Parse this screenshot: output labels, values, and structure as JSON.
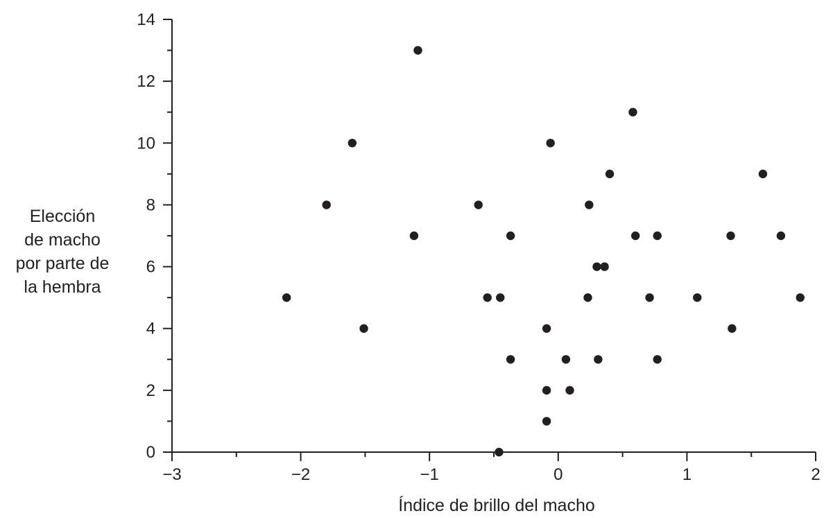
{
  "chart_data": {
    "type": "scatter",
    "xlabel": "Índice de brillo del macho",
    "ylabel_lines": [
      "Elección",
      "de macho",
      "por parte de",
      "la hembra"
    ],
    "xlim": [
      -3,
      2
    ],
    "ylim": [
      0,
      14
    ],
    "x_ticks": [
      {
        "value": -3,
        "label": "−3"
      },
      {
        "value": -2,
        "label": "−2"
      },
      {
        "value": -1,
        "label": "−1"
      },
      {
        "value": 0,
        "label": "0"
      },
      {
        "value": 1,
        "label": "1"
      },
      {
        "value": 2,
        "label": "2"
      }
    ],
    "x_minor_ticks": [
      -2.5,
      -1.5,
      -0.5,
      0.5,
      1.5
    ],
    "y_ticks": [
      {
        "value": 0,
        "label": "0"
      },
      {
        "value": 2,
        "label": "2"
      },
      {
        "value": 4,
        "label": "4"
      },
      {
        "value": 6,
        "label": "6"
      },
      {
        "value": 8,
        "label": "8"
      },
      {
        "value": 10,
        "label": "10"
      },
      {
        "value": 12,
        "label": "12"
      },
      {
        "value": 14,
        "label": "14"
      }
    ],
    "y_minor_ticks": [
      1,
      3,
      5,
      7,
      9,
      11,
      13
    ],
    "grid": false,
    "points": [
      {
        "x": -2.11,
        "y": 5
      },
      {
        "x": -1.8,
        "y": 8
      },
      {
        "x": -1.6,
        "y": 10
      },
      {
        "x": -1.51,
        "y": 4
      },
      {
        "x": -1.12,
        "y": 7
      },
      {
        "x": -1.09,
        "y": 13
      },
      {
        "x": -0.62,
        "y": 8
      },
      {
        "x": -0.55,
        "y": 5
      },
      {
        "x": -0.45,
        "y": 5
      },
      {
        "x": -0.46,
        "y": 0
      },
      {
        "x": -0.37,
        "y": 7
      },
      {
        "x": -0.37,
        "y": 3
      },
      {
        "x": -0.09,
        "y": 4
      },
      {
        "x": -0.09,
        "y": 2
      },
      {
        "x": -0.09,
        "y": 1
      },
      {
        "x": -0.06,
        "y": 10
      },
      {
        "x": 0.06,
        "y": 3
      },
      {
        "x": 0.09,
        "y": 2
      },
      {
        "x": 0.23,
        "y": 5
      },
      {
        "x": 0.24,
        "y": 8
      },
      {
        "x": 0.3,
        "y": 6
      },
      {
        "x": 0.31,
        "y": 3
      },
      {
        "x": 0.36,
        "y": 6
      },
      {
        "x": 0.4,
        "y": 9
      },
      {
        "x": 0.58,
        "y": 11
      },
      {
        "x": 0.6,
        "y": 7
      },
      {
        "x": 0.71,
        "y": 5
      },
      {
        "x": 0.77,
        "y": 7
      },
      {
        "x": 0.77,
        "y": 3
      },
      {
        "x": 1.08,
        "y": 5
      },
      {
        "x": 1.34,
        "y": 7
      },
      {
        "x": 1.35,
        "y": 4
      },
      {
        "x": 1.59,
        "y": 9
      },
      {
        "x": 1.73,
        "y": 7
      },
      {
        "x": 1.88,
        "y": 5
      }
    ]
  }
}
